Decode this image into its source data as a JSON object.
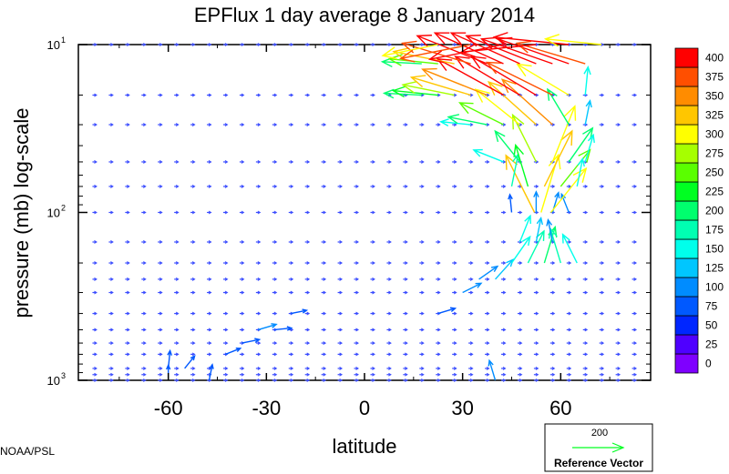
{
  "chart_data": {
    "type": "vector-field",
    "title": "EPFlux  1 day average  8 January   2014",
    "xlabel": "latitude",
    "ylabel": "pressure (mb)  log-scale",
    "x_ticks": [
      -60,
      -30,
      0,
      30,
      60
    ],
    "x_tick_labels": [
      "-60",
      "-30",
      "0",
      "30",
      "60"
    ],
    "xlim": [
      -87.5,
      87.5
    ],
    "y_scale": "log",
    "ylim": [
      1000,
      10
    ],
    "y_ticks": [
      {
        "value": 10,
        "base": "10",
        "exp": "1"
      },
      {
        "value": 100,
        "base": "10",
        "exp": "2"
      },
      {
        "value": 1000,
        "base": "10",
        "exp": "3"
      }
    ],
    "colorbar": {
      "levels": [
        0,
        25,
        50,
        75,
        100,
        125,
        150,
        175,
        200,
        225,
        250,
        275,
        300,
        325,
        350,
        375,
        400
      ],
      "colors": [
        "#7f00ff",
        "#4f00ff",
        "#0026ff",
        "#0059ff",
        "#008cff",
        "#00c6ff",
        "#00ffeb",
        "#00ffb2",
        "#00ff6e",
        "#00ff22",
        "#5aff00",
        "#a6ff00",
        "#ffff00",
        "#ffc600",
        "#ff8c00",
        "#ff4f00",
        "#ff0000"
      ]
    },
    "reference_vector": {
      "magnitude": 200,
      "label": "Reference Vector",
      "value_label": "200"
    },
    "pressure_levels_mb": [
      1000,
      925,
      850,
      700,
      600,
      500,
      400,
      300,
      250,
      200,
      150,
      100,
      70,
      50,
      30,
      20,
      10
    ],
    "vectors": [
      {
        "lat": -60,
        "p": 1000,
        "dx": 0,
        "dy": 1,
        "mag": 80
      },
      {
        "lat": -47.5,
        "p": 1000,
        "dx": 0.2,
        "dy": 1,
        "mag": 85
      },
      {
        "lat": 40,
        "p": 1000,
        "dx": -0.3,
        "dy": 1,
        "mag": 110
      },
      {
        "lat": -60,
        "p": 850,
        "dx": 0.1,
        "dy": 1,
        "mag": 95
      },
      {
        "lat": -55,
        "p": 850,
        "dx": 0.8,
        "dy": 1,
        "mag": 85
      },
      {
        "lat": -42.5,
        "p": 700,
        "dx": 1,
        "dy": 0.4,
        "mag": 85
      },
      {
        "lat": -37.5,
        "p": 600,
        "dx": 1,
        "dy": 0.2,
        "mag": 95
      },
      {
        "lat": -32.5,
        "p": 500,
        "dx": 1,
        "dy": 0.3,
        "mag": 100
      },
      {
        "lat": -27.5,
        "p": 500,
        "dx": 1,
        "dy": 0.1,
        "mag": 90
      },
      {
        "lat": -22.5,
        "p": 400,
        "dx": 1,
        "dy": 0.2,
        "mag": 85
      },
      {
        "lat": 22.5,
        "p": 400,
        "dx": 1,
        "dy": 0.3,
        "mag": 95
      },
      {
        "lat": 30,
        "p": 300,
        "dx": 1,
        "dy": 0.5,
        "mag": 110
      },
      {
        "lat": 35,
        "p": 250,
        "dx": 1,
        "dy": 0.7,
        "mag": 120
      },
      {
        "lat": 40,
        "p": 250,
        "dx": 0.9,
        "dy": 1,
        "mag": 140
      },
      {
        "lat": 45,
        "p": 200,
        "dx": 0.7,
        "dy": 1,
        "mag": 170
      },
      {
        "lat": 50,
        "p": 200,
        "dx": 0.5,
        "dy": 1,
        "mag": 190
      },
      {
        "lat": 55,
        "p": 200,
        "dx": 0.3,
        "dy": 1,
        "mag": 200
      },
      {
        "lat": 60,
        "p": 200,
        "dx": -0.3,
        "dy": 1,
        "mag": 190
      },
      {
        "lat": 65,
        "p": 200,
        "dx": -0.5,
        "dy": 1,
        "mag": 170
      },
      {
        "lat": 47.5,
        "p": 150,
        "dx": 0.4,
        "dy": 1,
        "mag": 150
      },
      {
        "lat": 52.5,
        "p": 150,
        "dx": 0.2,
        "dy": 1,
        "mag": 130
      },
      {
        "lat": 57.5,
        "p": 150,
        "dx": -0.2,
        "dy": 1,
        "mag": 120
      },
      {
        "lat": 45,
        "p": 100,
        "dx": -0.1,
        "dy": 1,
        "mag": 95
      },
      {
        "lat": 52.5,
        "p": 100,
        "dx": 0,
        "dy": 1,
        "mag": 110
      },
      {
        "lat": 57.5,
        "p": 100,
        "dx": 0.3,
        "dy": 1,
        "mag": 110
      },
      {
        "lat": 62.5,
        "p": 100,
        "dx": -0.4,
        "dy": 1,
        "mag": 105
      },
      {
        "lat": 52,
        "p": 100,
        "dx": -0.5,
        "dy": 1,
        "mag": 340
      },
      {
        "lat": 54,
        "p": 100,
        "dx": 0.3,
        "dy": 1,
        "mag": 320
      },
      {
        "lat": 57,
        "p": 100,
        "dx": 0.8,
        "dy": 1,
        "mag": 300
      },
      {
        "lat": 45,
        "p": 70,
        "dx": 0.2,
        "dy": 1,
        "mag": 175
      },
      {
        "lat": 50,
        "p": 70,
        "dx": -0.3,
        "dy": 1,
        "mag": 230
      },
      {
        "lat": 55,
        "p": 70,
        "dx": 0.5,
        "dy": 1,
        "mag": 330
      },
      {
        "lat": 60,
        "p": 70,
        "dx": 0.8,
        "dy": 1,
        "mag": 250
      },
      {
        "lat": 65,
        "p": 70,
        "dx": 0.2,
        "dy": 1,
        "mag": 150
      },
      {
        "lat": 42.5,
        "p": 50,
        "dx": -1,
        "dy": 0.4,
        "mag": 170
      },
      {
        "lat": 47.5,
        "p": 50,
        "dx": -0.8,
        "dy": 1,
        "mag": 210
      },
      {
        "lat": 52.5,
        "p": 50,
        "dx": -0.5,
        "dy": 1,
        "mag": 280
      },
      {
        "lat": 57.5,
        "p": 50,
        "dx": 0.4,
        "dy": 1,
        "mag": 320
      },
      {
        "lat": 62.5,
        "p": 50,
        "dx": 0.7,
        "dy": 1,
        "mag": 220
      },
      {
        "lat": 67.5,
        "p": 50,
        "dx": 0.3,
        "dy": 1,
        "mag": 150
      },
      {
        "lat": 32.5,
        "p": 30,
        "dx": -1,
        "dy": 0.1,
        "mag": 160
      },
      {
        "lat": 37.5,
        "p": 30,
        "dx": -1,
        "dy": 0.2,
        "mag": 210
      },
      {
        "lat": 42.5,
        "p": 30,
        "dx": -1,
        "dy": 0.5,
        "mag": 260
      },
      {
        "lat": 47.5,
        "p": 30,
        "dx": -1,
        "dy": 0.8,
        "mag": 300
      },
      {
        "lat": 52.5,
        "p": 30,
        "dx": -1,
        "dy": 0.9,
        "mag": 340
      },
      {
        "lat": 57.5,
        "p": 30,
        "dx": -1,
        "dy": 0.9,
        "mag": 360
      },
      {
        "lat": 62.5,
        "p": 30,
        "dx": -0.6,
        "dy": 1,
        "mag": 220
      },
      {
        "lat": 67.5,
        "p": 30,
        "dx": 0.2,
        "dy": 1,
        "mag": 130
      },
      {
        "lat": 17.5,
        "p": 20,
        "dx": -1,
        "dy": 0.05,
        "mag": 200
      },
      {
        "lat": 22.5,
        "p": 20,
        "dx": -1,
        "dy": 0.1,
        "mag": 240
      },
      {
        "lat": 27.5,
        "p": 20,
        "dx": -1,
        "dy": 0.2,
        "mag": 280
      },
      {
        "lat": 32.5,
        "p": 20,
        "dx": -1,
        "dy": 0.3,
        "mag": 330
      },
      {
        "lat": 37.5,
        "p": 20,
        "dx": -1,
        "dy": 0.4,
        "mag": 370
      },
      {
        "lat": 42.5,
        "p": 20,
        "dx": -1,
        "dy": 0.55,
        "mag": 400
      },
      {
        "lat": 47.5,
        "p": 20,
        "dx": -1,
        "dy": 0.6,
        "mag": 400
      },
      {
        "lat": 52.5,
        "p": 20,
        "dx": -1,
        "dy": 0.6,
        "mag": 400
      },
      {
        "lat": 57.5,
        "p": 20,
        "dx": -1,
        "dy": 0.5,
        "mag": 390
      },
      {
        "lat": 62.5,
        "p": 20,
        "dx": -1,
        "dy": 0.6,
        "mag": 320
      },
      {
        "lat": 67.5,
        "p": 20,
        "dx": 0.1,
        "dy": 1,
        "mag": 150
      },
      {
        "lat": 17.5,
        "p": 13,
        "dx": -1,
        "dy": 0.05,
        "mag": 210
      },
      {
        "lat": 22.5,
        "p": 13,
        "dx": -1,
        "dy": 0.1,
        "mag": 260
      },
      {
        "lat": 27.5,
        "p": 13,
        "dx": -1,
        "dy": 0.2,
        "mag": 330
      },
      {
        "lat": 32.5,
        "p": 13,
        "dx": -1,
        "dy": 0.3,
        "mag": 380
      },
      {
        "lat": 37.5,
        "p": 13,
        "dx": -1,
        "dy": 0.4,
        "mag": 400
      },
      {
        "lat": 42.5,
        "p": 13,
        "dx": -1,
        "dy": 0.45,
        "mag": 400
      },
      {
        "lat": 47.5,
        "p": 13,
        "dx": -1,
        "dy": 0.45,
        "mag": 400
      },
      {
        "lat": 52.5,
        "p": 13,
        "dx": -1,
        "dy": 0.4,
        "mag": 400
      },
      {
        "lat": 57.5,
        "p": 13,
        "dx": -1,
        "dy": 0.35,
        "mag": 400
      },
      {
        "lat": 62.5,
        "p": 13,
        "dx": -1,
        "dy": 0.35,
        "mag": 400
      },
      {
        "lat": 67.5,
        "p": 13,
        "dx": -1,
        "dy": 0.3,
        "mag": 380
      },
      {
        "lat": 22.5,
        "p": 10,
        "dx": -1,
        "dy": -0.2,
        "mag": 300
      },
      {
        "lat": 32.5,
        "p": 10,
        "dx": -1,
        "dy": -0.2,
        "mag": 380
      },
      {
        "lat": 42.5,
        "p": 10,
        "dx": -1,
        "dy": -0.2,
        "mag": 400
      },
      {
        "lat": 52.5,
        "p": 10,
        "dx": -1,
        "dy": -0.1,
        "mag": 400
      },
      {
        "lat": 62.5,
        "p": 10,
        "dx": -1,
        "dy": 0.1,
        "mag": 400
      },
      {
        "lat": 72.5,
        "p": 10,
        "dx": -1,
        "dy": 0.1,
        "mag": 300
      }
    ]
  },
  "footer": {
    "credit": "NOAA/PSL"
  }
}
